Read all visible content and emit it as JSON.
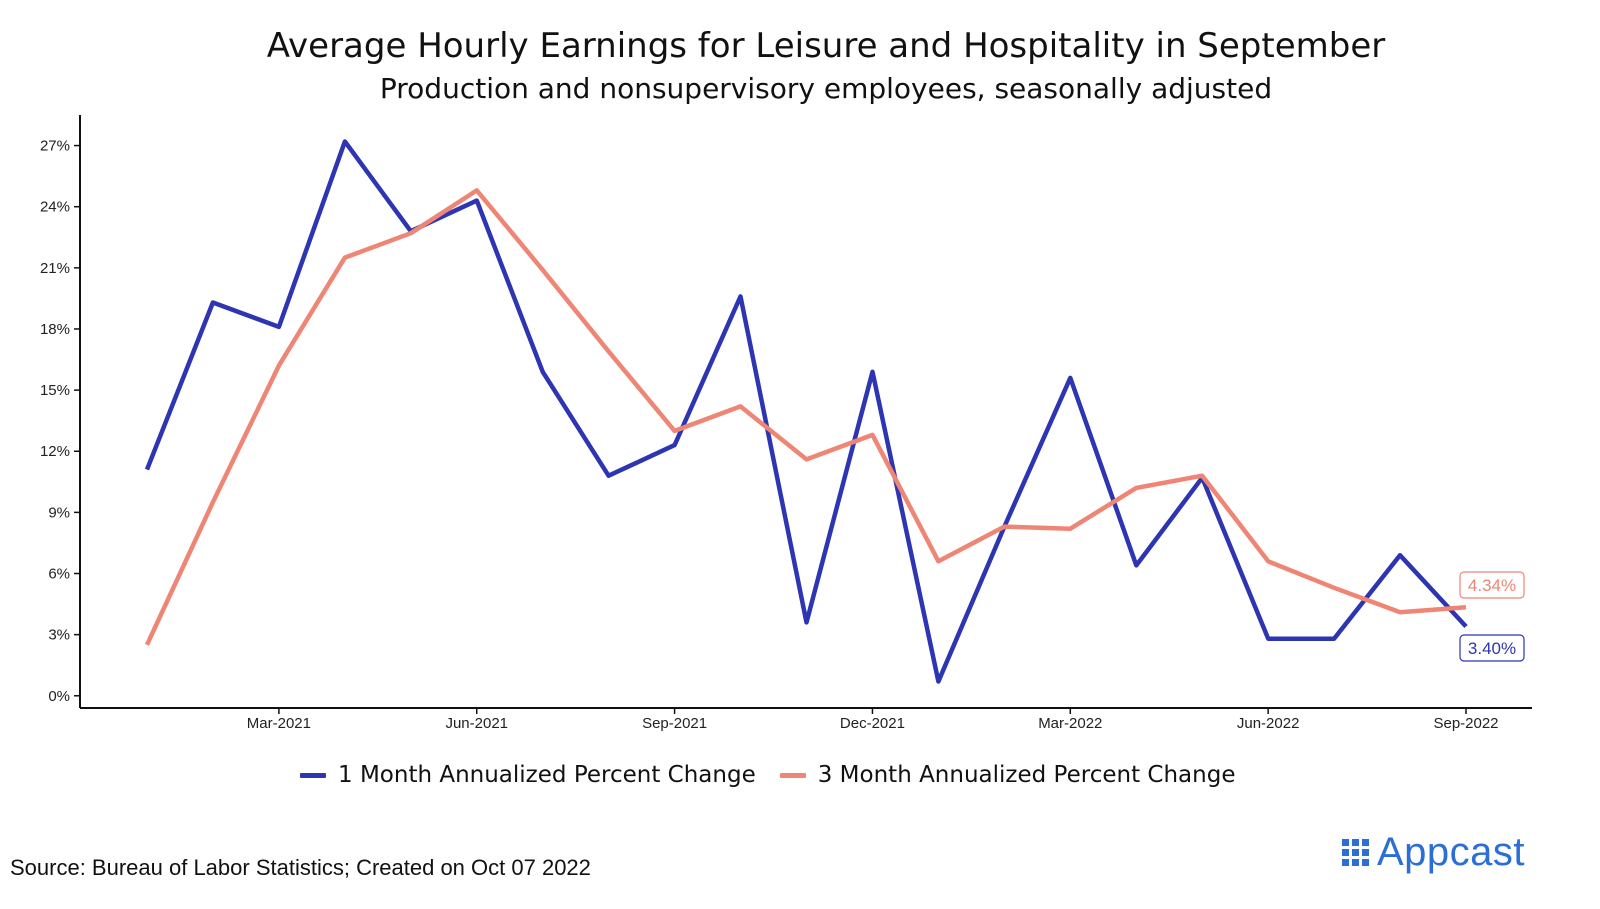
{
  "header": {
    "title": "Average Hourly Earnings for Leisure and Hospitality in September",
    "subtitle": "Production and nonsupervisory employees, seasonally adjusted"
  },
  "footer": {
    "source": "Source: Bureau of Labor Statistics; Created on Oct 07 2022",
    "logo_text": "Appcast"
  },
  "colors": {
    "series_1": "#2e35b2",
    "series_2": "#ef8575",
    "axis": "#111111",
    "logo": "#2b6fd6"
  },
  "chart_data": {
    "type": "line",
    "title": "Average Hourly Earnings for Leisure and Hospitality in September",
    "subtitle": "Production and nonsupervisory employees, seasonally adjusted",
    "xlabel": "",
    "ylabel": "",
    "x": [
      "2021-01",
      "2021-02",
      "2021-03",
      "2021-04",
      "2021-05",
      "2021-06",
      "2021-07",
      "2021-08",
      "2021-09",
      "2021-10",
      "2021-11",
      "2021-12",
      "2022-01",
      "2022-02",
      "2022-03",
      "2022-04",
      "2022-05",
      "2022-06",
      "2022-07",
      "2022-08",
      "2022-09"
    ],
    "x_ticks": [
      "Mar-2021",
      "Jun-2021",
      "Sep-2021",
      "Dec-2021",
      "Mar-2022",
      "Jun-2022",
      "Sep-2022"
    ],
    "x_tick_positions": [
      "2021-03",
      "2021-06",
      "2021-09",
      "2021-12",
      "2022-03",
      "2022-06",
      "2022-09"
    ],
    "y_ticks": [
      "0%",
      "3%",
      "6%",
      "9%",
      "12%",
      "15%",
      "18%",
      "21%",
      "24%",
      "27%"
    ],
    "y_tick_values": [
      0,
      3,
      6,
      9,
      12,
      15,
      18,
      21,
      24,
      27
    ],
    "ylim": [
      -0.6,
      28.5
    ],
    "grid": false,
    "legend_position": "bottom",
    "series": [
      {
        "name": "1 Month Annualized Percent Change",
        "values": [
          11.1,
          19.3,
          18.1,
          27.2,
          22.8,
          24.3,
          15.9,
          10.8,
          12.3,
          19.6,
          3.6,
          15.9,
          0.7,
          8.3,
          15.6,
          6.4,
          10.7,
          2.8,
          2.8,
          6.9,
          3.4
        ],
        "end_label": "3.40%"
      },
      {
        "name": "3 Month Annualized Percent Change",
        "values": [
          2.5,
          9.5,
          16.2,
          21.5,
          22.7,
          24.8,
          20.9,
          16.9,
          13.0,
          14.2,
          11.6,
          12.8,
          6.6,
          8.3,
          8.2,
          10.2,
          10.8,
          6.6,
          5.3,
          4.1,
          4.34
        ],
        "end_label": "4.34%"
      }
    ]
  }
}
